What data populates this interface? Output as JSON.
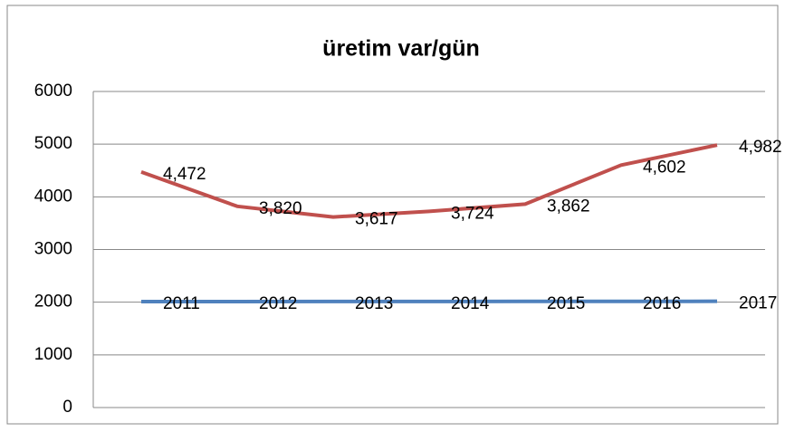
{
  "chart_data": {
    "type": "line",
    "title": "üretim var/gün",
    "categories": [
      null,
      null,
      null,
      null,
      null,
      null,
      null
    ],
    "series": [
      {
        "name": null,
        "color": "#4f81bd",
        "values": [
          2011,
          2012,
          2013,
          2014,
          2015,
          2016,
          2017
        ]
      },
      {
        "name": null,
        "color": "#c0504d",
        "values": [
          4472,
          3820,
          3617,
          3724,
          3862,
          4602,
          4982
        ],
        "value_labels": [
          "4,472",
          "3,820",
          "3,617",
          "3,724",
          "3,862",
          "4,602",
          "4,982"
        ]
      }
    ],
    "ylim": [
      0,
      6000
    ],
    "yticks": [
      0,
      1000,
      2000,
      3000,
      4000,
      5000,
      6000
    ],
    "grid": true
  }
}
